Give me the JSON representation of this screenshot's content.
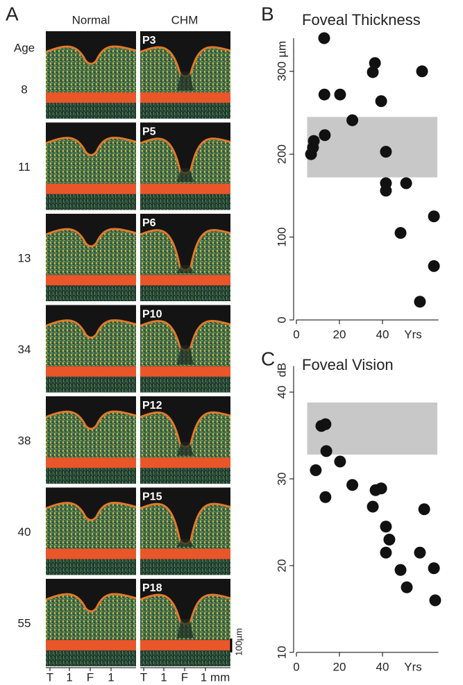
{
  "panel_a": {
    "label": "A",
    "columns": [
      "Normal",
      "CHM"
    ],
    "age_header": "Age",
    "ages": [
      8,
      11,
      13,
      34,
      38,
      40,
      55
    ],
    "patients": [
      "P3",
      "P5",
      "P6",
      "P10",
      "P12",
      "P15",
      "P18"
    ],
    "scale_bar": "100µm",
    "x_axis_labels": [
      "T",
      "1",
      "F",
      "1",
      "T",
      "1",
      "F",
      "1 mm"
    ]
  },
  "chart_data": [
    {
      "type": "scatter",
      "label": "B",
      "title": "Foveal Thickness",
      "y_unit": "µm",
      "x_unit": "Yrs",
      "x": [
        6.8,
        7.7,
        8.1,
        12.9,
        13,
        13.2,
        20.3,
        26,
        35.5,
        36.5,
        39.4,
        41.6,
        41.6,
        41.6,
        48.4,
        51,
        58.4,
        63.9,
        63.9,
        57.4
      ],
      "y": [
        200,
        208,
        216,
        340,
        272,
        223,
        272,
        241,
        299,
        310,
        264,
        203,
        165,
        156,
        105,
        165,
        300,
        125,
        65,
        22
      ],
      "xlim": [
        0,
        66
      ],
      "ylim": [
        0,
        340
      ],
      "xticks": [
        0,
        20,
        40
      ],
      "yticks": [
        0,
        100,
        200,
        300
      ],
      "color": "#111111",
      "reference_band": {
        "x": [
          5,
          65.5
        ],
        "y": [
          172,
          245
        ],
        "color": "#c8c8c8"
      }
    },
    {
      "type": "scatter",
      "label": "C",
      "title": "Foveal Vision",
      "y_unit": "dB",
      "x_unit": "Yrs",
      "x": [
        9,
        11.6,
        13.5,
        13.9,
        13.5,
        20.3,
        26,
        35.5,
        36.8,
        39.4,
        41.6,
        43.2,
        41.6,
        48.4,
        51.3,
        57.4,
        59.4,
        63.9,
        64.5
      ],
      "y": [
        31,
        36.1,
        36.3,
        33.2,
        27.9,
        32,
        29.3,
        26.8,
        28.7,
        28.9,
        24.5,
        23,
        21.5,
        19.5,
        17.5,
        21.5,
        26.5,
        19.7,
        16
      ],
      "xlim": [
        0,
        66
      ],
      "ylim": [
        10,
        43
      ],
      "xticks": [
        0,
        20,
        40
      ],
      "yticks": [
        10,
        20,
        30,
        40
      ],
      "color": "#111111",
      "reference_band": {
        "x": [
          5,
          65.5
        ],
        "y": [
          32.8,
          38.8
        ],
        "color": "#c8c8c8"
      }
    }
  ]
}
